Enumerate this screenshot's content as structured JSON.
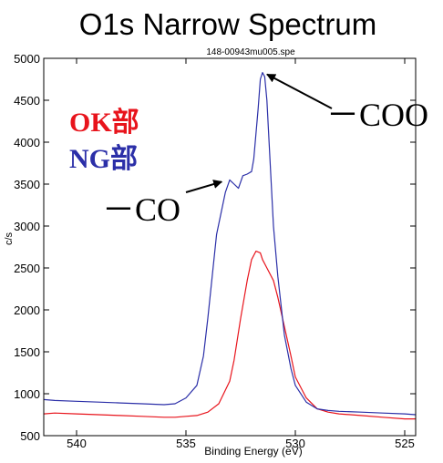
{
  "chart_data": {
    "type": "line",
    "title": "O1s Narrow Spectrum",
    "subtitle": "148-00943mu005.spe",
    "xlabel": "Binding Energy (eV)",
    "ylabel": "c/s",
    "xlim": [
      541.5,
      524.5
    ],
    "ylim": [
      500,
      5000
    ],
    "x_reversed": true,
    "grid": false,
    "xticks": [
      540,
      535,
      530,
      525
    ],
    "yticks": [
      500,
      1000,
      1500,
      2000,
      2500,
      3000,
      3500,
      4000,
      4500,
      5000
    ],
    "legend": [
      {
        "label": "OK部",
        "color": "#e8141c"
      },
      {
        "label": "NG部",
        "color": "#2b2fa8"
      }
    ],
    "series": [
      {
        "name": "OK部",
        "color": "#e8141c",
        "x": [
          541.5,
          541,
          540,
          539,
          538,
          537,
          536,
          535.5,
          535,
          534.5,
          534,
          533.5,
          533,
          532.8,
          532.5,
          532.2,
          532,
          531.8,
          531.6,
          531.5,
          531.3,
          531,
          530.8,
          530.5,
          530.2,
          530,
          529.5,
          529,
          528.5,
          528,
          527,
          526,
          525,
          524.5
        ],
        "y": [
          760,
          770,
          760,
          750,
          740,
          730,
          720,
          720,
          730,
          740,
          780,
          880,
          1150,
          1400,
          1900,
          2350,
          2600,
          2700,
          2680,
          2600,
          2500,
          2350,
          2150,
          1800,
          1450,
          1200,
          950,
          820,
          780,
          760,
          740,
          720,
          700,
          700
        ]
      },
      {
        "name": "NG部",
        "color": "#2b2fa8",
        "x": [
          541.5,
          541,
          540,
          539,
          538,
          537,
          536,
          535.5,
          535,
          534.5,
          534.2,
          534,
          533.8,
          533.6,
          533.4,
          533.2,
          533,
          532.8,
          532.6,
          532.4,
          532.2,
          532,
          531.9,
          531.8,
          531.7,
          531.6,
          531.5,
          531.4,
          531.3,
          531.2,
          531.1,
          531,
          530.8,
          530.5,
          530.2,
          530,
          529.5,
          529,
          528.5,
          528,
          527,
          526,
          525,
          524.5
        ],
        "y": [
          930,
          920,
          910,
          900,
          890,
          880,
          870,
          880,
          950,
          1100,
          1450,
          1900,
          2400,
          2900,
          3150,
          3400,
          3550,
          3500,
          3450,
          3600,
          3620,
          3650,
          3800,
          4100,
          4400,
          4750,
          4830,
          4780,
          4500,
          4000,
          3500,
          3000,
          2400,
          1700,
          1300,
          1100,
          900,
          820,
          800,
          790,
          780,
          770,
          760,
          750
        ]
      }
    ],
    "annotations": [
      {
        "text": "－COO",
        "x": 531.5,
        "y": 4830
      },
      {
        "text": "－CO",
        "x": 533.2,
        "y": 3550
      }
    ]
  }
}
